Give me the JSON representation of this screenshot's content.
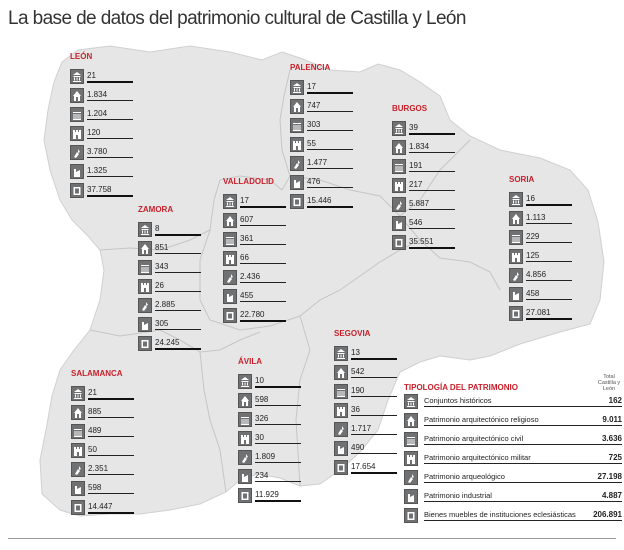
{
  "title": "La base de datos del patrimonio cultural de Castilla y León",
  "colors": {
    "map_fill": "#e6e6e6",
    "border": "#c8c8c8",
    "accent": "#c8202b",
    "icon": "#6f7173"
  },
  "icons": [
    "conjuntos-historicos-icon",
    "religioso-icon",
    "civil-icon",
    "militar-icon",
    "arqueologico-icon",
    "industrial-icon",
    "bienes-muebles-icon"
  ],
  "provinces": [
    {
      "name": "LEÓN",
      "values": [
        "21",
        "1.834",
        "1.204",
        "120",
        "3.780",
        "1.325",
        "37.758"
      ]
    },
    {
      "name": "PALENCIA",
      "values": [
        "17",
        "747",
        "303",
        "55",
        "1.477",
        "476",
        "15.446"
      ]
    },
    {
      "name": "BURGOS",
      "values": [
        "39",
        "1.834",
        "191",
        "217",
        "5.887",
        "546",
        "35.551"
      ]
    },
    {
      "name": "SORIA",
      "values": [
        "16",
        "1.113",
        "229",
        "125",
        "4.856",
        "458",
        "27.081"
      ]
    },
    {
      "name": "VALLADOLID",
      "values": [
        "17",
        "607",
        "361",
        "66",
        "2.436",
        "455",
        "22.780"
      ]
    },
    {
      "name": "ZAMORA",
      "values": [
        "8",
        "851",
        "343",
        "26",
        "2.885",
        "305",
        "24.245"
      ]
    },
    {
      "name": "SEGOVIA",
      "values": [
        "13",
        "542",
        "190",
        "36",
        "1.717",
        "490",
        "17.654"
      ]
    },
    {
      "name": "SALAMANCA",
      "values": [
        "21",
        "885",
        "489",
        "50",
        "2.351",
        "598",
        "14.447"
      ]
    },
    {
      "name": "ÁVILA",
      "values": [
        "10",
        "598",
        "326",
        "30",
        "1.809",
        "234",
        "11.929"
      ]
    }
  ],
  "legend": {
    "title": "TIPOLOGÍA DEL PATRIMONIO",
    "total_header": "Total Castilla y León",
    "items": [
      {
        "label": "Conjuntos históricos",
        "total": "162"
      },
      {
        "label": "Patrimonio arquitectónico religioso",
        "total": "9.011"
      },
      {
        "label": "Patrimonio arquitectónico civil",
        "total": "3.636"
      },
      {
        "label": "Patrimonio arquitectónico militar",
        "total": "725"
      },
      {
        "label": "Patrimonio arqueológico",
        "total": "27.198"
      },
      {
        "label": "Patrimonio industrial",
        "total": "4.887"
      },
      {
        "label": "Bienes muebles de instituciones eclesiásticas",
        "total": "206.891"
      }
    ]
  }
}
